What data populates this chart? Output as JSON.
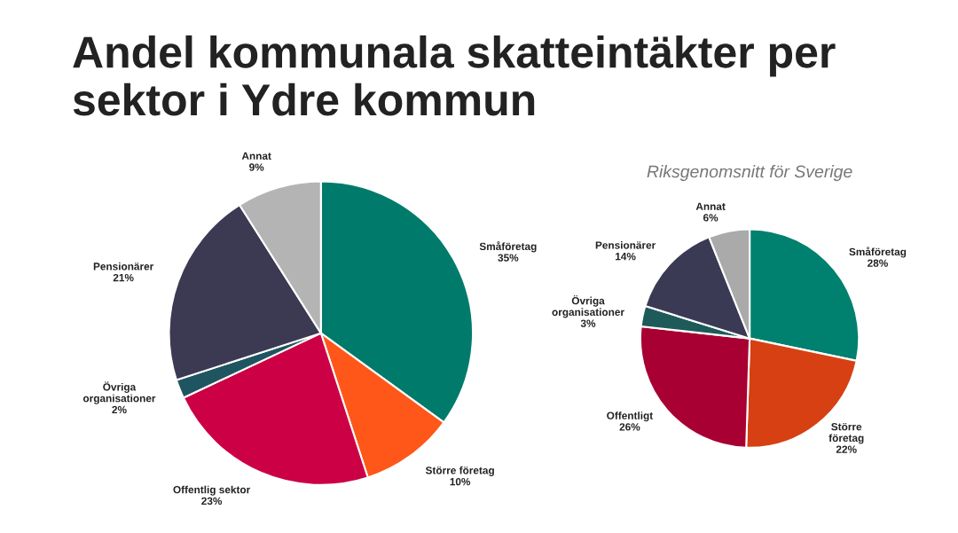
{
  "chart_data": [
    {
      "type": "pie",
      "title": "Andel kommunala skatteintäkter per sektor i Ydre kommun",
      "categories": [
        "Småföretag",
        "Större företag",
        "Offentlig sektor",
        "Övriga\norganisationer",
        "Pensionärer",
        "Annat"
      ],
      "values": [
        35,
        10,
        23,
        2,
        21,
        9
      ],
      "colors": [
        "#007b6b",
        "#ff5719",
        "#cc0044",
        "#1f5560",
        "#3b3a52",
        "#b4b4b4"
      ],
      "value_labels": [
        "35%",
        "10%",
        "23%",
        "2%",
        "21%",
        "9%"
      ],
      "data_labels": true
    },
    {
      "type": "pie",
      "title": "Riksgenomsnitt för Sverige",
      "categories": [
        "Småföretag",
        "Större\nföretag",
        "Offentligt",
        "Övriga\norganisationer",
        "Pensionärer",
        "Annat"
      ],
      "values": [
        28,
        22,
        26,
        3,
        14,
        6
      ],
      "colors": [
        "#00806e",
        "#d64012",
        "#a80033",
        "#1e5a5a",
        "#3a3a55",
        "#aaaaaa"
      ],
      "value_labels": [
        "28%",
        "22%",
        "26%",
        "3%",
        "14%",
        "6%"
      ],
      "data_labels": true
    }
  ]
}
